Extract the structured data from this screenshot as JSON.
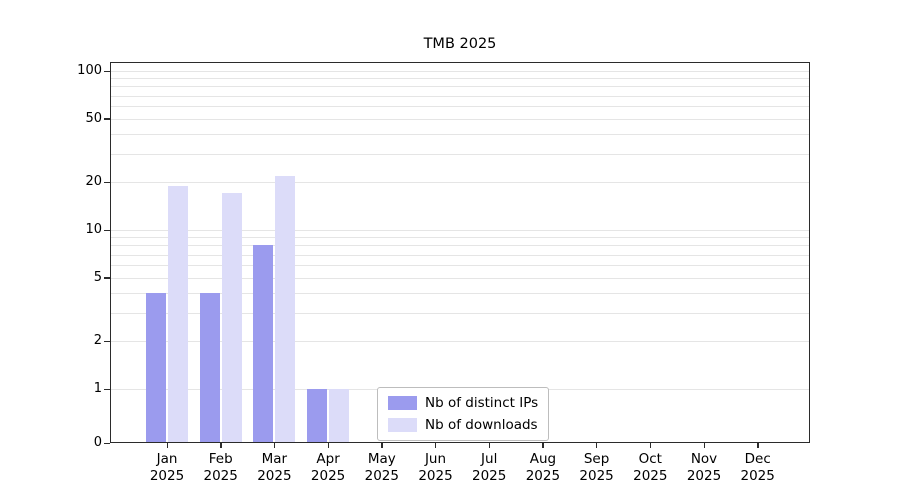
{
  "title": "TMB 2025",
  "y_axis": {
    "tick_labels": [
      "100",
      "50",
      "20",
      "10",
      "5",
      "2",
      "1",
      "0"
    ],
    "tick_values": [
      100,
      50,
      20,
      10,
      5,
      2,
      1,
      0
    ]
  },
  "x_axis": {
    "labels": [
      {
        "month": "Jan",
        "year": "2025"
      },
      {
        "month": "Feb",
        "year": "2025"
      },
      {
        "month": "Mar",
        "year": "2025"
      },
      {
        "month": "Apr",
        "year": "2025"
      },
      {
        "month": "May",
        "year": "2025"
      },
      {
        "month": "Jun",
        "year": "2025"
      },
      {
        "month": "Jul",
        "year": "2025"
      },
      {
        "month": "Aug",
        "year": "2025"
      },
      {
        "month": "Sep",
        "year": "2025"
      },
      {
        "month": "Oct",
        "year": "2025"
      },
      {
        "month": "Nov",
        "year": "2025"
      },
      {
        "month": "Dec",
        "year": "2025"
      }
    ]
  },
  "legend": {
    "items": [
      {
        "label": "Nb of distinct IPs",
        "color": "#9b9bee"
      },
      {
        "label": "Nb of downloads",
        "color": "#dcdcf9"
      }
    ]
  },
  "chart_data": {
    "type": "bar",
    "title": "TMB 2025",
    "categories": [
      "Jan 2025",
      "Feb 2025",
      "Mar 2025",
      "Apr 2025",
      "May 2025",
      "Jun 2025",
      "Jul 2025",
      "Aug 2025",
      "Sep 2025",
      "Oct 2025",
      "Nov 2025",
      "Dec 2025"
    ],
    "series": [
      {
        "name": "Nb of distinct IPs",
        "color": "#9b9bee",
        "values": [
          4,
          4,
          8,
          1,
          0,
          0,
          0,
          0,
          0,
          0,
          0,
          0
        ]
      },
      {
        "name": "Nb of downloads",
        "color": "#dcdcf9",
        "values": [
          19,
          17,
          22,
          1,
          0,
          0,
          0,
          0,
          0,
          0,
          0,
          0
        ]
      }
    ],
    "yscale": "symlog",
    "yticks": [
      0,
      1,
      2,
      5,
      10,
      20,
      50,
      100
    ],
    "ylim": [
      0,
      100
    ],
    "grid": "horizontal",
    "legend_position": "lower center"
  }
}
